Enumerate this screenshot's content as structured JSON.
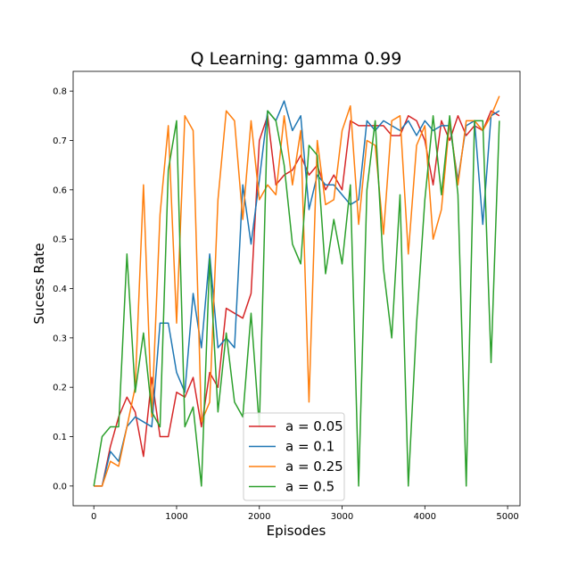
{
  "chart_data": {
    "type": "line",
    "title": "Q Learning: gamma 0.99",
    "xlabel": "Episodes",
    "ylabel": "Sucess Rate",
    "xlim": [
      -250,
      5150
    ],
    "ylim": [
      -0.04,
      0.84
    ],
    "xticks": [
      0,
      1000,
      2000,
      3000,
      4000,
      5000
    ],
    "xtick_labels": [
      "0",
      "1000",
      "2000",
      "3000",
      "4000",
      "5000"
    ],
    "yticks": [
      0.0,
      0.1,
      0.2,
      0.3,
      0.4,
      0.5,
      0.6,
      0.7,
      0.8
    ],
    "ytick_labels": [
      "0.0",
      "0.1",
      "0.2",
      "0.3",
      "0.4",
      "0.5",
      "0.6",
      "0.7",
      "0.8"
    ],
    "grid": false,
    "legend_position": "bottom-center",
    "x": [
      0,
      100,
      200,
      300,
      400,
      500,
      600,
      700,
      800,
      900,
      1000,
      1100,
      1200,
      1300,
      1400,
      1500,
      1600,
      1700,
      1800,
      1900,
      2000,
      2100,
      2200,
      2300,
      2400,
      2500,
      2600,
      2700,
      2800,
      2900,
      3000,
      3100,
      3200,
      3300,
      3400,
      3500,
      3600,
      3700,
      3800,
      3900,
      4000,
      4100,
      4200,
      4300,
      4400,
      4500,
      4600,
      4700,
      4800,
      4900
    ],
    "series": [
      {
        "name": "a = 0.05",
        "color": "#d62728",
        "values": [
          0.0,
          0.0,
          0.08,
          0.14,
          0.18,
          0.15,
          0.06,
          0.22,
          0.1,
          0.1,
          0.19,
          0.18,
          0.22,
          0.12,
          0.23,
          0.2,
          0.36,
          0.35,
          0.34,
          0.39,
          0.7,
          0.75,
          0.61,
          0.63,
          0.64,
          0.67,
          0.63,
          0.65,
          0.6,
          0.63,
          0.6,
          0.74,
          0.73,
          0.73,
          0.73,
          0.73,
          0.71,
          0.71,
          0.75,
          0.74,
          0.7,
          0.61,
          0.74,
          0.7,
          0.75,
          0.71,
          0.73,
          0.72,
          0.76,
          0.75
        ]
      },
      {
        "name": "a = 0.1",
        "color": "#1f77b4",
        "values": [
          0.0,
          0.0,
          0.07,
          0.05,
          0.12,
          0.14,
          0.13,
          0.12,
          0.33,
          0.33,
          0.23,
          0.19,
          0.39,
          0.28,
          0.47,
          0.28,
          0.3,
          0.28,
          0.61,
          0.49,
          0.62,
          0.76,
          0.74,
          0.78,
          0.72,
          0.75,
          0.56,
          0.63,
          0.61,
          0.61,
          0.59,
          0.57,
          0.58,
          0.74,
          0.72,
          0.74,
          0.73,
          0.72,
          0.74,
          0.71,
          0.74,
          0.72,
          0.73,
          0.73,
          0.62,
          0.73,
          0.74,
          0.53,
          0.75,
          0.76
        ]
      },
      {
        "name": "a = 0.25",
        "color": "#ff7f0e",
        "values": [
          0.0,
          0.0,
          0.05,
          0.04,
          0.12,
          0.2,
          0.61,
          0.14,
          0.55,
          0.73,
          0.33,
          0.75,
          0.72,
          0.13,
          0.17,
          0.58,
          0.76,
          0.74,
          0.54,
          0.74,
          0.58,
          0.61,
          0.59,
          0.75,
          0.61,
          0.72,
          0.17,
          0.7,
          0.57,
          0.58,
          0.72,
          0.77,
          0.53,
          0.7,
          0.69,
          0.51,
          0.74,
          0.75,
          0.47,
          0.69,
          0.73,
          0.5,
          0.56,
          0.74,
          0.61,
          0.74,
          0.74,
          0.72,
          0.75,
          0.79
        ]
      },
      {
        "name": "a = 0.5",
        "color": "#2ca02c",
        "values": [
          0.0,
          0.1,
          0.12,
          0.12,
          0.47,
          0.19,
          0.31,
          0.15,
          0.12,
          0.64,
          0.74,
          0.12,
          0.16,
          0.0,
          0.46,
          0.15,
          0.31,
          0.17,
          0.14,
          0.35,
          0.12,
          0.76,
          0.74,
          0.65,
          0.49,
          0.45,
          0.69,
          0.67,
          0.43,
          0.54,
          0.45,
          0.61,
          0.0,
          0.6,
          0.74,
          0.44,
          0.3,
          0.59,
          0.0,
          0.33,
          0.58,
          0.75,
          0.59,
          0.75,
          0.59,
          0.0,
          0.74,
          0.74,
          0.25,
          0.74
        ]
      }
    ]
  }
}
